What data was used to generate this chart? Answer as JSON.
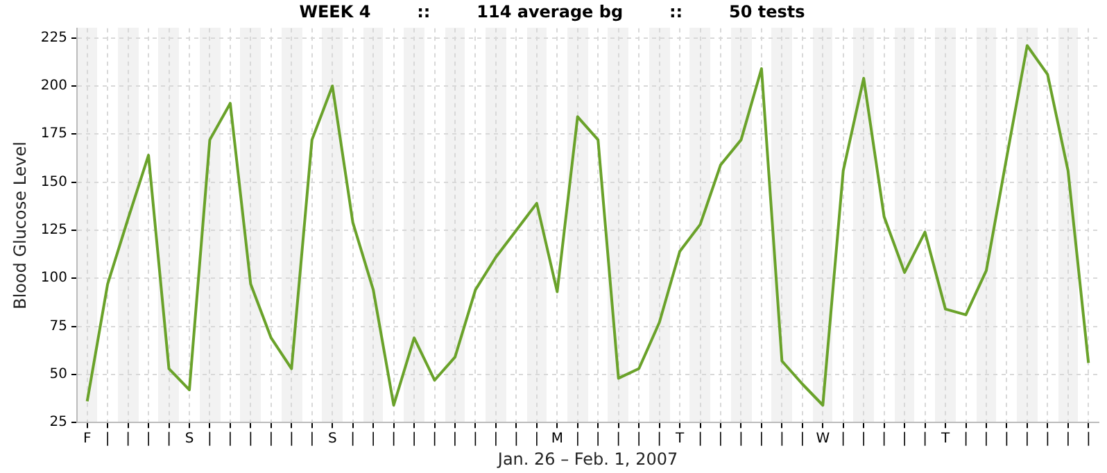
{
  "chart_data": {
    "type": "line",
    "title": "WEEK 4        ::        114 average bg        ::        50 tests",
    "xlabel": "Jan. 26 – Feb. 1, 2007",
    "ylabel": "Blood Glucose Level",
    "categories": [
      "F",
      "|",
      "|",
      "|",
      "|",
      "S",
      "|",
      "|",
      "|",
      "|",
      "|",
      "|",
      "S",
      "|",
      "|",
      "|",
      "|",
      "|",
      "|",
      "|",
      "|",
      "|",
      "|",
      "M",
      "|",
      "|",
      "|",
      "|",
      "|",
      "T",
      "|",
      "|",
      "|",
      "|",
      "|",
      "|",
      "W",
      "|",
      "|",
      "|",
      "|",
      "|",
      "T",
      "|",
      "|",
      "|",
      "|",
      "|",
      "|",
      "|"
    ],
    "series": [
      {
        "color": "#6aa22a",
        "values": [
          36,
          97,
          131,
          164,
          53,
          42,
          172,
          191,
          97,
          69,
          53,
          172,
          200,
          129,
          94,
          34,
          69,
          47,
          59,
          94,
          111,
          125,
          139,
          93,
          184,
          172,
          48,
          53,
          77,
          114,
          128,
          159,
          172,
          209,
          57,
          45,
          34,
          156,
          204,
          132,
          103,
          124,
          84,
          81,
          104,
          163,
          221,
          206,
          156,
          56
        ]
      }
    ],
    "ylim": [
      25,
      230
    ],
    "yticks": [
      25,
      50,
      75,
      100,
      125,
      150,
      175,
      200,
      225
    ],
    "grid": true,
    "legend": false,
    "marker": "none",
    "line_style": "solid"
  }
}
